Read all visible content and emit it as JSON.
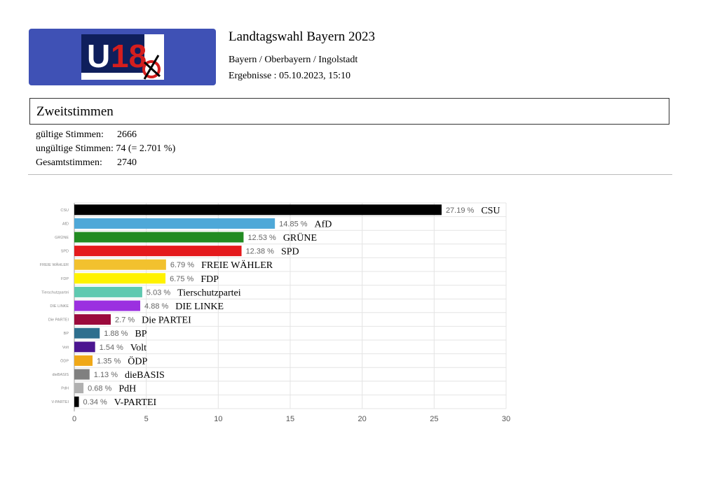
{
  "header": {
    "logo_text": "U18",
    "title": "Landtagswahl Bayern 2023",
    "breadcrumb": "Bayern / Oberbayern / Ingolstadt",
    "results": "Ergebnisse : 05.10.2023, 15:10",
    "brand_color": "#3f51b5"
  },
  "section": {
    "title": "Zweitstimmen"
  },
  "stats": [
    {
      "label": "gültige Stimmen:",
      "value": "2666"
    },
    {
      "label": "ungültige Stimmen:",
      "value": "74 (= 2.701 %)"
    },
    {
      "label": "Gesamtstimmen:",
      "value": "2740"
    }
  ],
  "chart_data": {
    "type": "bar",
    "orientation": "horizontal",
    "grid": true,
    "xlim": [
      0,
      30
    ],
    "xticks": [
      "0",
      "5",
      "10",
      "15",
      "20",
      "25",
      "30"
    ],
    "categories": [
      "CSU",
      "AfD",
      "GRÜNE",
      "SPD",
      "FREIE WÄHLER",
      "FDP",
      "Tierschutzpartei",
      "DIE LINKE",
      "Die PARTEI",
      "BP",
      "Volt",
      "ÖDP",
      "dieBASIS",
      "PdH",
      "V-PARTEI"
    ],
    "values": [
      27.19,
      14.85,
      12.53,
      12.38,
      6.79,
      6.75,
      5.03,
      4.88,
      2.7,
      1.88,
      1.54,
      1.35,
      1.13,
      0.68,
      0.34
    ],
    "value_labels": [
      "27.19 %",
      "14.85 %",
      "12.53 %",
      "12.38 %",
      "6.79 %",
      "6.75 %",
      "5.03 %",
      "4.88 %",
      "2.7 %",
      "1.88 %",
      "1.54 %",
      "1.35 %",
      "1.13 %",
      "0.68 %",
      "0.34 %"
    ],
    "colors": [
      "#000000",
      "#4ea8d8",
      "#228b22",
      "#e41a1c",
      "#f2c12e",
      "#fff200",
      "#5fc9b0",
      "#9b30e0",
      "#9b0a3c",
      "#2e6f8e",
      "#4b1590",
      "#f0a818",
      "#808080",
      "#b0b0b0",
      "#000000"
    ]
  }
}
